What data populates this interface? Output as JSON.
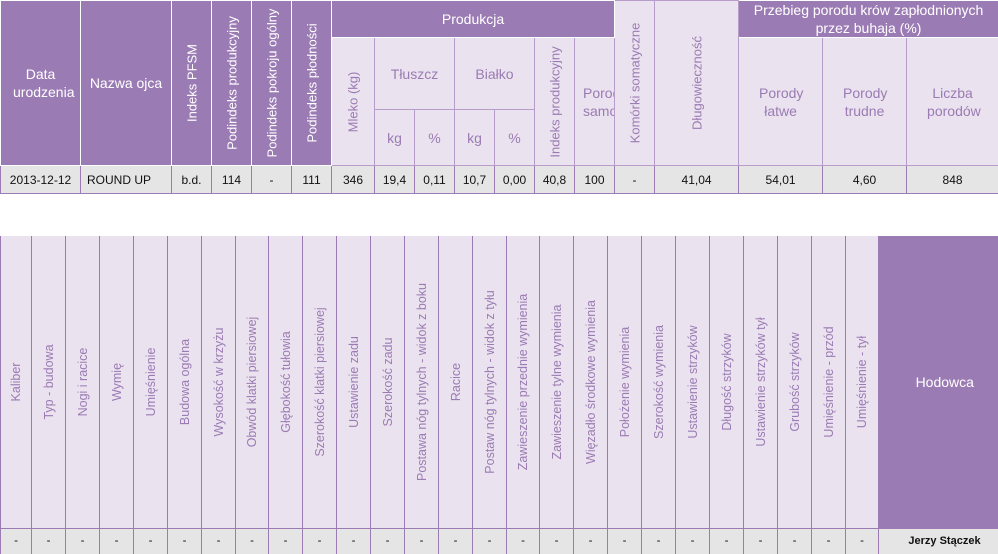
{
  "top_table": {
    "headers": {
      "birth_date": "Data urodzenia",
      "sire_name": "Nazwa ojca",
      "pfsm_index": "Indeks PFSM",
      "production_subindex": "Podindeks produkcyjny",
      "conformation_subindex": "Podindeks pokroju ogólny",
      "fertility_subindex": "Podindeks płodności",
      "production": "Produkcja",
      "milk": "Mleko (kg)",
      "fat": "Tłuszcz",
      "protein": "Białko",
      "kg": "kg",
      "percent": "%",
      "production_index": "Indeks produkcyjny",
      "somatic_cells": "Komórki somatyczne",
      "longevity": "Długowieczność",
      "calving_course": "Przebieg porodu krów zapłodnionych przez buhaja (%)",
      "calving_unassisted": "Porody samodzielne",
      "calving_easy": "Porody łatwe",
      "calving_difficult": "Porody trudne",
      "calving_count": "Liczba porodów"
    },
    "row": {
      "birth_date": "2013-12-12",
      "sire_name": "ROUND UP",
      "pfsm_index": "b.d.",
      "production_subindex": "114",
      "conformation_subindex": "-",
      "fertility_subindex": "111",
      "milk": "346",
      "fat_kg": "19,4",
      "fat_pct": "0,11",
      "protein_kg": "10,7",
      "protein_pct": "0,00",
      "production_index": "40,8",
      "somatic_cells": "100",
      "longevity": "-",
      "calving_unassisted": "41,04",
      "calving_easy": "54,01",
      "calving_difficult": "4,60",
      "calving_count": "848"
    }
  },
  "bottom_table": {
    "headers": [
      "Kaliber",
      "Typ - budowa",
      "Nogi i racice",
      "Wymię",
      "Umięśnienie",
      "Budowa ogólna",
      "Wysokość w krzyżu",
      "Obwód klatki piersiowej",
      "Głębokość tułowia",
      "Szerokość klatki piersiowej",
      "Ustawienie zadu",
      "Szerokość zadu",
      "Postawa nóg tylnych - widok z boku",
      "Racice",
      "Postaw nóg tylnych - widok z tyłu",
      "Zawieszenie przednie wymienia",
      "Zawieszenie tylne wymienia",
      "Więzadło środkowe wymienia",
      "Położenie wymienia",
      "Szerokość wymienia",
      "Ustawienie strzyków",
      "Długość strzyków",
      "Ustawienie strzyków tył",
      "Grubość strzyków",
      "Umięśnienie - przód",
      "Umięśnienie - tył"
    ],
    "breeder_header": "Hodowca",
    "values": [
      "-",
      "-",
      "-",
      "-",
      "-",
      "-",
      "-",
      "-",
      "-",
      "-",
      "-",
      "-",
      "-",
      "-",
      "-",
      "-",
      "-",
      "-",
      "-",
      "-",
      "-",
      "-",
      "-",
      "-",
      "-",
      "-"
    ],
    "breeder": "Jerzy Stączek"
  }
}
